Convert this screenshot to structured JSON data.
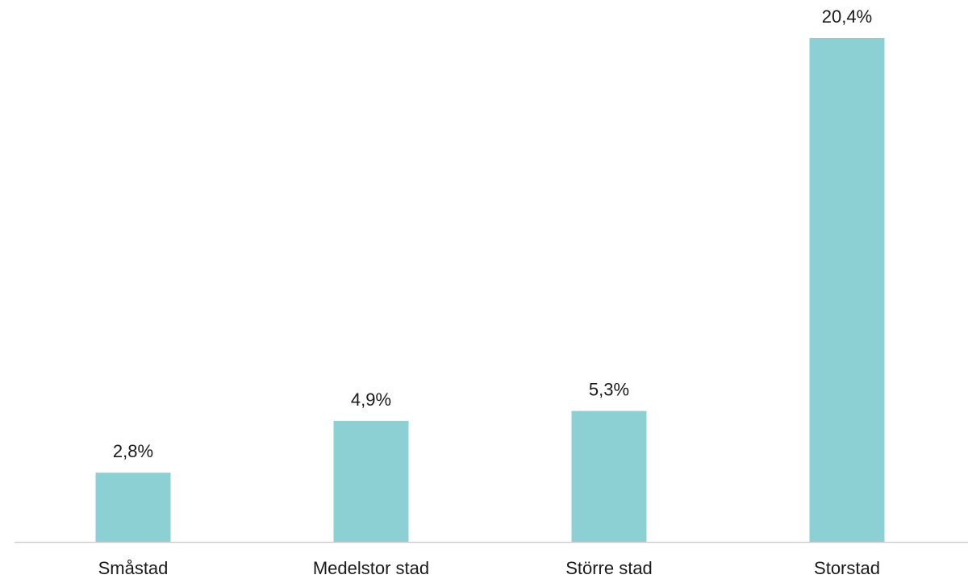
{
  "chart_data": {
    "type": "bar",
    "title": "",
    "xlabel": "",
    "ylabel": "",
    "categories": [
      "Småstad",
      "Medelstor stad",
      "Större stad",
      "Storstad"
    ],
    "values": [
      2.8,
      4.9,
      5.3,
      20.4
    ],
    "value_labels": [
      "2,8%",
      "4,9%",
      "5,3%",
      "20,4%"
    ],
    "ylim": [
      0,
      20.4
    ],
    "grid": false,
    "legend": "none",
    "bar_color": "#8dd0d4",
    "axis_color": "#d0d0d0",
    "text_color": "#1a1a1a"
  }
}
